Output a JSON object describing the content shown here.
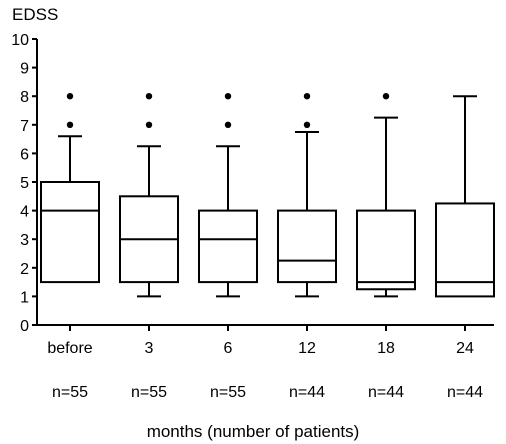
{
  "chart_data": {
    "type": "boxplot",
    "title": "",
    "ylabel": "EDSS",
    "xlabel": "months (number of patients)",
    "ylim": [
      0,
      10
    ],
    "yticks": [
      "0",
      "1",
      "2",
      "3",
      "4",
      "5",
      "6",
      "7",
      "8",
      "9",
      "10"
    ],
    "grid": false,
    "categories": [
      "before",
      "3",
      "6",
      "12",
      "18",
      "24"
    ],
    "counts": [
      "n=55",
      "n=55",
      "n=55",
      "n=44",
      "n=44",
      "n=44"
    ],
    "boxes": [
      {
        "whisker_low": 1.5,
        "q1": 1.5,
        "median": 4.0,
        "q3": 5.0,
        "whisker_high": 6.6,
        "outliers": [
          7,
          8
        ]
      },
      {
        "whisker_low": 1.0,
        "q1": 1.5,
        "median": 3.0,
        "q3": 4.5,
        "whisker_high": 6.25,
        "outliers": [
          7,
          8
        ]
      },
      {
        "whisker_low": 1.0,
        "q1": 1.5,
        "median": 3.0,
        "q3": 4.0,
        "whisker_high": 6.25,
        "outliers": [
          7,
          8
        ]
      },
      {
        "whisker_low": 1.0,
        "q1": 1.5,
        "median": 2.25,
        "q3": 4.0,
        "whisker_high": 6.75,
        "outliers": [
          7,
          8
        ]
      },
      {
        "whisker_low": 1.0,
        "q1": 1.25,
        "median": 1.5,
        "q3": 4.0,
        "whisker_high": 7.25,
        "outliers": [
          8
        ]
      },
      {
        "whisker_low": 1.0,
        "q1": 1.0,
        "median": 1.5,
        "q3": 4.25,
        "whisker_high": 8.0,
        "outliers": []
      }
    ],
    "colors": {
      "stroke": "#000000",
      "background": "#ffffff"
    }
  }
}
